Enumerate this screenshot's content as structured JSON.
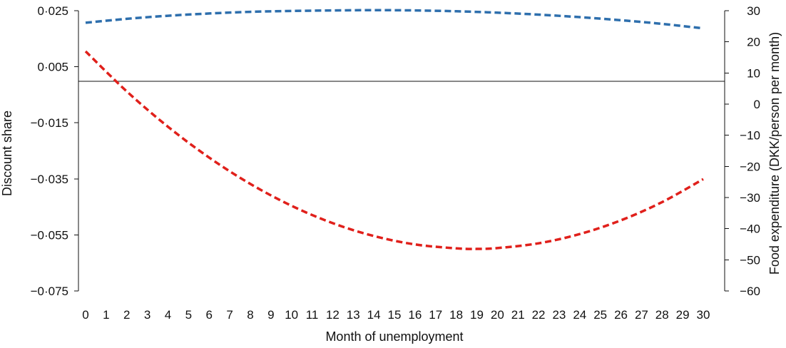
{
  "chart_data": {
    "type": "line",
    "title": "",
    "xlabel": "Month of unemployment",
    "ylabel_left": "Discount share",
    "ylabel_right": "Food expenditure (DKK/person per month)",
    "x_ticks": [
      0,
      1,
      2,
      3,
      4,
      5,
      6,
      7,
      8,
      9,
      10,
      11,
      12,
      13,
      14,
      15,
      16,
      17,
      18,
      19,
      20,
      21,
      22,
      23,
      24,
      25,
      26,
      27,
      28,
      29,
      30
    ],
    "xlim": [
      0,
      30
    ],
    "y_left_ticks": [
      "0·025",
      "0·005",
      "−0·015",
      "−0·035",
      "−0·055",
      "−0·075"
    ],
    "y_left_values": [
      0.025,
      0.005,
      -0.015,
      -0.035,
      -0.055,
      -0.075
    ],
    "ylim_left": [
      -0.075,
      0.025
    ],
    "y_right_ticks": [
      "30",
      "20",
      "10",
      "0",
      "−10",
      "−20",
      "−30",
      "−40",
      "−50",
      "−60"
    ],
    "y_right_values": [
      30,
      20,
      10,
      0,
      -10,
      -20,
      -30,
      -40,
      -50,
      -60
    ],
    "ylim_right": [
      -60,
      30
    ],
    "grid": false,
    "legend": "none",
    "series": [
      {
        "axis": "left",
        "color": "#2e6fad",
        "style": "dashed",
        "x": [
          0,
          2,
          4,
          6,
          8,
          10,
          12,
          14,
          16,
          18,
          20,
          22,
          24,
          26,
          28,
          30
        ],
        "values": [
          0.0207,
          0.0221,
          0.0232,
          0.024,
          0.0246,
          0.0249,
          0.0251,
          0.0252,
          0.0251,
          0.0248,
          0.0243,
          0.0236,
          0.0227,
          0.0216,
          0.0203,
          0.0187
        ]
      },
      {
        "axis": "left",
        "color": "#e0201b",
        "style": "dashed",
        "x": [
          0,
          2,
          4,
          6,
          8,
          10,
          12,
          14,
          16,
          18,
          19,
          20,
          22,
          24,
          26,
          28,
          30
        ],
        "values": [
          0.0105,
          -0.0038,
          -0.0164,
          -0.0274,
          -0.0368,
          -0.0446,
          -0.0508,
          -0.0554,
          -0.0584,
          -0.0598,
          -0.06,
          -0.0597,
          -0.058,
          -0.0547,
          -0.0498,
          -0.0433,
          -0.0351
        ]
      }
    ]
  }
}
